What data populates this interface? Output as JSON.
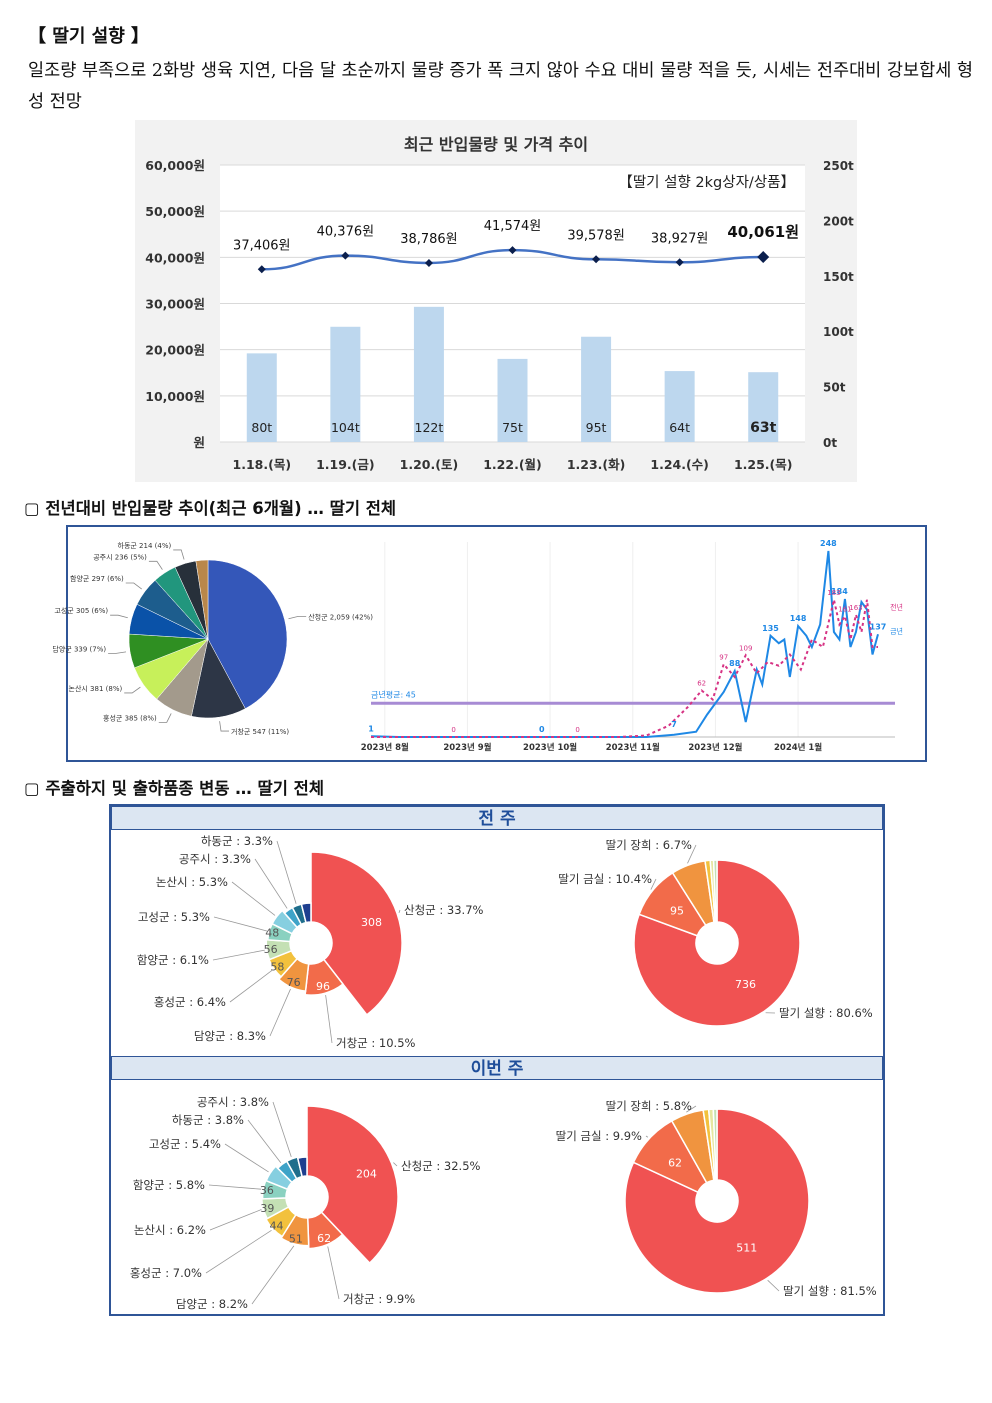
{
  "document": {
    "title": "【 딸기 설향 】",
    "summary": "일조량 부족으로 2화방 생육 지연, 다음 달 초순까지 물량 증가 폭 크지 않아 수요 대비 물량 적을 듯, 시세는 전주대비 강보합세 형성 전망"
  },
  "sections": {
    "trend_title": "▢ 전년대비 반입물량 추이(최근 6개월) … 딸기 전체",
    "mix_title": "▢ 주출하지 및 출하품종 변동 … 딸기 전체"
  },
  "colors": {
    "bar": "#bdd7ee",
    "price_line": "#4472c4",
    "this_year": "#1e88e5",
    "last_year": "#d63384",
    "avg_line": "#a78bd4",
    "frame": "#2f5597"
  },
  "chart_data": [
    {
      "id": "recent-arrival-price",
      "type": "bar+line",
      "title": "최근 반입물량 및 가격 추이",
      "annotation": "【딸기 설향 2kg상자/상품】",
      "categories": [
        "1.18.(목)",
        "1.19.(금)",
        "1.20.(토)",
        "1.22.(월)",
        "1.23.(화)",
        "1.24.(수)",
        "1.25.(목)"
      ],
      "series": [
        {
          "kind": "bar",
          "axis": "right",
          "values": [
            80,
            104,
            122,
            75,
            95,
            64,
            63
          ],
          "labels": [
            "80t",
            "104t",
            "122t",
            "75t",
            "95t",
            "64t",
            "63t"
          ]
        },
        {
          "kind": "line",
          "axis": "left",
          "values": [
            37406,
            40376,
            38786,
            41574,
            39578,
            38927,
            40061
          ],
          "labels": [
            "37,406원",
            "40,376원",
            "38,786원",
            "41,574원",
            "39,578원",
            "38,927원",
            "40,061원"
          ]
        }
      ],
      "left_axis": {
        "ylim": [
          0,
          60000
        ],
        "ticks": [
          "원",
          "10,000원",
          "20,000원",
          "30,000원",
          "40,000원",
          "50,000원",
          "60,000원"
        ]
      },
      "right_axis": {
        "ylim": [
          0,
          250
        ],
        "ticks": [
          "0t",
          "50t",
          "100t",
          "150t",
          "200t",
          "250t"
        ]
      }
    },
    {
      "id": "region-share-6m",
      "type": "pie",
      "slices": [
        {
          "name": "산청군",
          "value": 2059,
          "label": "산청군 2,059 (42%)",
          "color": "#3457b9"
        },
        {
          "name": "거창군",
          "value": 547,
          "label": "거창군 547 (11%)",
          "color": "#2d3646"
        },
        {
          "name": "홍성군",
          "value": 385,
          "label": "홍성군 385 (8%)",
          "color": "#a39a8c"
        },
        {
          "name": "논산시",
          "value": 381,
          "label": "논산시 381 (8%)",
          "color": "#c7f05a"
        },
        {
          "name": "담양군",
          "value": 339,
          "label": "담양군 339 (7%)",
          "color": "#2f8f22"
        },
        {
          "name": "고성군",
          "value": 305,
          "label": "고성군 305 (6%)",
          "color": "#0a52a8"
        },
        {
          "name": "함양군",
          "value": 297,
          "label": "함양군 297 (6%)",
          "color": "#1d5d8d"
        },
        {
          "name": "공주시",
          "value": 236,
          "label": "공주시 236 (5%)",
          "color": "#21967d"
        },
        {
          "name": "하동군",
          "value": 214,
          "label": "하동군 214 (4%)",
          "color": "#27303a"
        },
        {
          "name": "기타",
          "value": 120,
          "label": "",
          "color": "#b9874a"
        }
      ]
    },
    {
      "id": "arrival-trend-6m",
      "type": "line",
      "x_ticks": [
        "2023년 8월",
        "2023년 9월",
        "2023년 10월",
        "2023년 11월",
        "2023년 12월",
        "2024년 1월"
      ],
      "avg_label": "금년평균: 45",
      "avg_value": 45,
      "ylim": [
        0,
        260
      ],
      "series": [
        {
          "name": "금년",
          "x": [
            0,
            10,
            20,
            30,
            40,
            50,
            60,
            70,
            80,
            90,
            100,
            110,
            118,
            122,
            128,
            132,
            136,
            140,
            142,
            145,
            148,
            150,
            152,
            155,
            158,
            160,
            163,
            166,
            168,
            170,
            172,
            174,
            176,
            178,
            180,
            182,
            184
          ],
          "y": [
            1,
            0,
            0,
            0,
            0,
            0,
            0,
            0,
            0,
            0,
            0,
            3,
            7,
            30,
            60,
            88,
            20,
            90,
            70,
            135,
            125,
            130,
            80,
            148,
            135,
            120,
            150,
            248,
            140,
            130,
            184,
            120,
            140,
            180,
            170,
            110,
            137
          ]
        },
        {
          "name": "전년",
          "x": [
            0,
            30,
            60,
            90,
            100,
            108,
            115,
            120,
            124,
            128,
            132,
            136,
            140,
            144,
            148,
            152,
            156,
            160,
            164,
            168,
            170,
            172,
            174,
            176,
            178,
            180,
            182,
            184
          ],
          "y": [
            0,
            0,
            0,
            0,
            2,
            15,
            40,
            62,
            50,
            97,
            80,
            109,
            85,
            100,
            95,
            110,
            90,
            130,
            120,
            183,
            150,
            161,
            130,
            163,
            140,
            183,
            120,
            120
          ]
        }
      ],
      "point_labels": [
        {
          "text": "1",
          "series": "금년"
        },
        {
          "text": "0",
          "series": "전년"
        },
        {
          "text": "0",
          "series": "금년"
        },
        {
          "text": "0",
          "series": "전년"
        },
        {
          "text": "7",
          "series": "금년"
        },
        {
          "text": "62",
          "series": "전년"
        },
        {
          "text": "88",
          "series": "금년"
        },
        {
          "text": "97",
          "series": "전년"
        },
        {
          "text": "109",
          "series": "전년"
        },
        {
          "text": "135",
          "series": "금년"
        },
        {
          "text": "148",
          "series": "금년"
        },
        {
          "text": "248",
          "series": "금년"
        },
        {
          "text": "184",
          "series": "금년"
        },
        {
          "text": "183",
          "series": "전년"
        },
        {
          "text": "161",
          "series": "전년"
        },
        {
          "text": "163",
          "series": "전년"
        },
        {
          "text": "137",
          "series": "금년"
        }
      ],
      "legend": [
        "전년",
        "금년"
      ]
    },
    {
      "id": "prev-week-region",
      "type": "pie",
      "period": "전 주",
      "slices": [
        {
          "name": "산청군",
          "value": 308,
          "label": "산청군 : 33.7%",
          "color": "#f05252"
        },
        {
          "name": "거창군",
          "value": 96,
          "label": "거창군 : 10.5%",
          "color": "#f26b4a"
        },
        {
          "name": "담양군",
          "value": 76,
          "label": "담양군 : 8.3%",
          "color": "#f0943f"
        },
        {
          "name": "홍성군",
          "value": 58,
          "label": "홍성군 : 6.4%",
          "color": "#f2c13d"
        },
        {
          "name": "함양군",
          "value": 56,
          "label": "함양군 : 6.1%",
          "color": "#c4e0b4"
        },
        {
          "name": "고성군",
          "value": 48,
          "label": "고성군 : 5.3%",
          "color": "#8ad1c0"
        },
        {
          "name": "논산시",
          "value": 48,
          "label": "논산시 : 5.3%",
          "color": "#86cfe0"
        },
        {
          "name": "공주시",
          "value": 30,
          "label": "공주시 : 3.3%",
          "color": "#3ea3c8"
        },
        {
          "name": "하동군",
          "value": 30,
          "label": "하동군 : 3.3%",
          "color": "#1f6e8c"
        },
        {
          "name": "기타",
          "value": 30,
          "label": "",
          "color": "#1e3f8f"
        }
      ],
      "slice_values": [
        "308",
        "96",
        "76",
        "58",
        "56",
        "48"
      ]
    },
    {
      "id": "prev-week-variety",
      "type": "pie",
      "period": "전 주",
      "slices": [
        {
          "name": "딸기 설향",
          "value": 736,
          "label": "딸기 설향 : 80.6%",
          "color": "#f05252"
        },
        {
          "name": "딸기 금실",
          "value": 95,
          "label": "딸기 금실 : 10.4%",
          "color": "#f26b4a"
        },
        {
          "name": "딸기 장희",
          "value": 61,
          "label": "딸기 장희 : 6.7%",
          "color": "#f0943f"
        },
        {
          "name": "기타1",
          "value": 9,
          "label": "",
          "color": "#f2c13d"
        },
        {
          "name": "기타2",
          "value": 6,
          "label": "",
          "color": "#e6e6a0"
        },
        {
          "name": "기타3",
          "value": 6,
          "label": "",
          "color": "#c4e0b4"
        }
      ],
      "slice_values": [
        "736",
        "95"
      ]
    },
    {
      "id": "this-week-region",
      "type": "pie",
      "period": "이번 주",
      "slices": [
        {
          "name": "산청군",
          "value": 204,
          "label": "산청군 : 32.5%",
          "color": "#f05252"
        },
        {
          "name": "거창군",
          "value": 62,
          "label": "거창군 : 9.9%",
          "color": "#f26b4a"
        },
        {
          "name": "담양군",
          "value": 51,
          "label": "담양군 : 8.2%",
          "color": "#f0943f"
        },
        {
          "name": "홍성군",
          "value": 44,
          "label": "홍성군 : 7.0%",
          "color": "#f2c13d"
        },
        {
          "name": "논산시",
          "value": 39,
          "label": "논산시 : 6.2%",
          "color": "#c4e0b4"
        },
        {
          "name": "함양군",
          "value": 36,
          "label": "함양군 : 5.8%",
          "color": "#8ad1c0"
        },
        {
          "name": "고성군",
          "value": 34,
          "label": "고성군 : 5.4%",
          "color": "#86cfe0"
        },
        {
          "name": "하동군",
          "value": 24,
          "label": "하동군 : 3.8%",
          "color": "#3ea3c8"
        },
        {
          "name": "공주시",
          "value": 24,
          "label": "공주시 : 3.8%",
          "color": "#1f6e8c"
        },
        {
          "name": "기타",
          "value": 20,
          "label": "",
          "color": "#1e3f8f"
        }
      ],
      "slice_values": [
        "204",
        "62",
        "51",
        "44",
        "39",
        "36"
      ]
    },
    {
      "id": "this-week-variety",
      "type": "pie",
      "period": "이번 주",
      "slices": [
        {
          "name": "딸기 설향",
          "value": 511,
          "label": "딸기 설향 : 81.5%",
          "color": "#f05252"
        },
        {
          "name": "딸기 금실",
          "value": 62,
          "label": "딸기 금실 : 9.9%",
          "color": "#f26b4a"
        },
        {
          "name": "딸기 장희",
          "value": 36,
          "label": "딸기 장희 : 5.8%",
          "color": "#f0943f"
        },
        {
          "name": "기타1",
          "value": 6,
          "label": "",
          "color": "#f2c13d"
        },
        {
          "name": "기타2",
          "value": 5,
          "label": "",
          "color": "#e6e6a0"
        },
        {
          "name": "기타3",
          "value": 4,
          "label": "",
          "color": "#c4e0b4"
        }
      ],
      "slice_values": [
        "511",
        "62"
      ]
    }
  ]
}
